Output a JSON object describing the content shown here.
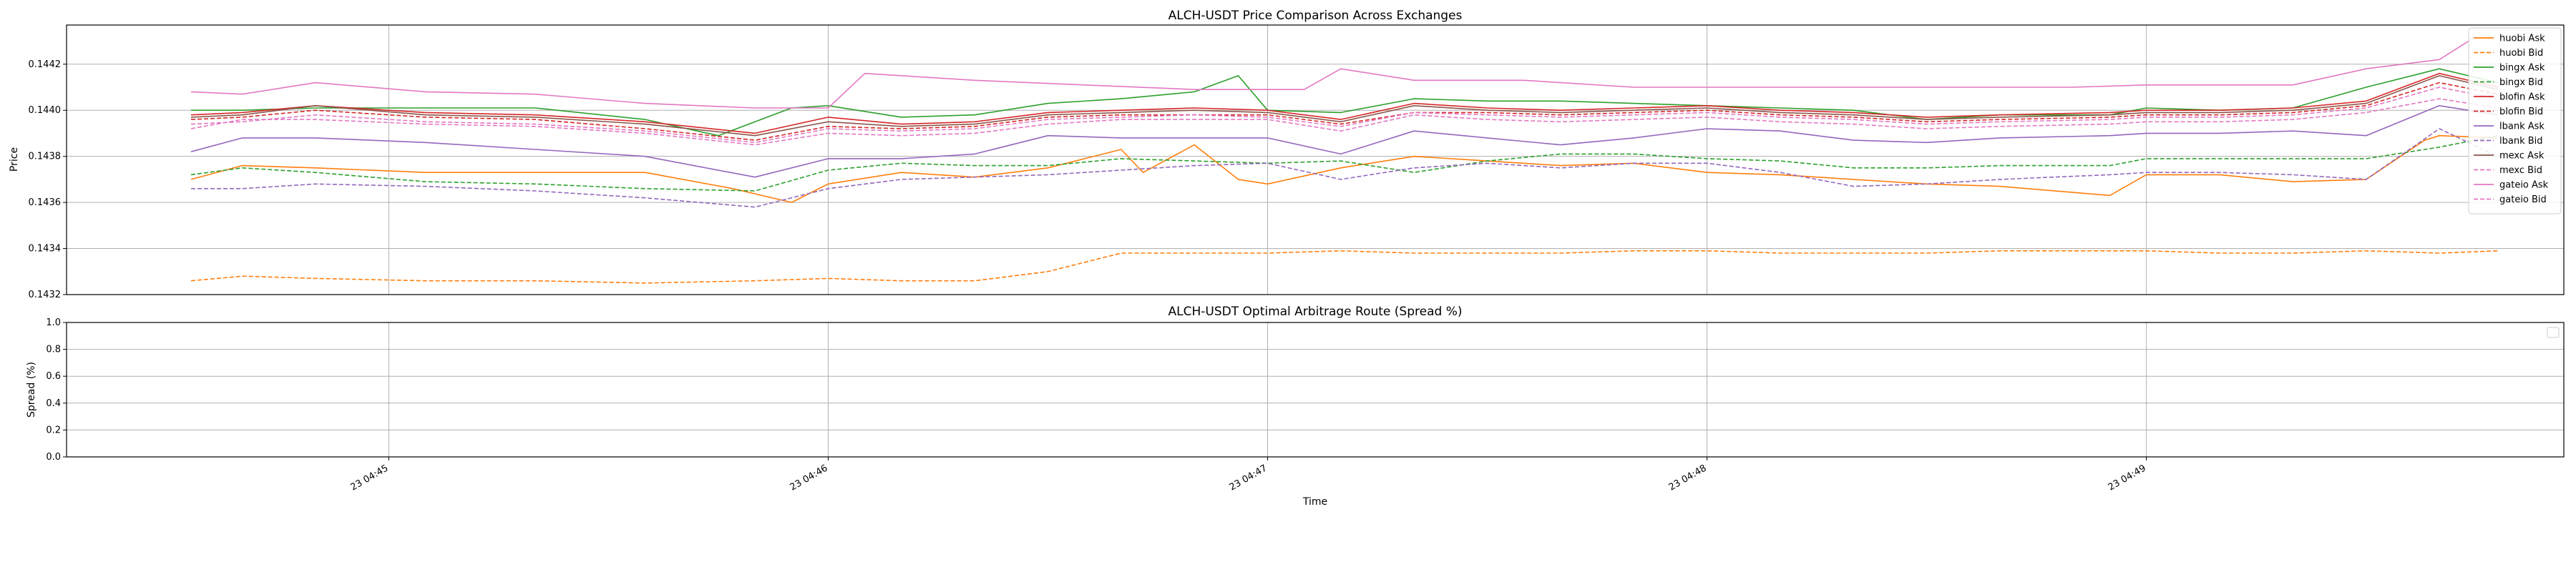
{
  "chart_data": [
    {
      "type": "line",
      "title": "ALCH-USDT Price Comparison Across Exchanges",
      "xlabel": "",
      "ylabel": "Price",
      "ylim": [
        0.1432,
        0.14437
      ],
      "yticks": [
        "0.1432",
        "0.1434",
        "0.1436",
        "0.1438",
        "0.1440",
        "0.1442"
      ],
      "xlim": [
        "04:44:16",
        "04:49:57"
      ],
      "x_unit": "HH:MM:SS",
      "grid": true,
      "legend": "upper-right",
      "series": [
        {
          "name": "huobi Ask",
          "color": "#ff7f0e",
          "style": "solid",
          "x": [
            "04:44:33",
            "04:44:40",
            "04:44:50",
            "04:45:05",
            "04:45:20",
            "04:45:35",
            "04:45:47",
            "04:45:55",
            "04:46:00",
            "04:46:10",
            "04:46:20",
            "04:46:30",
            "04:46:40",
            "04:46:43",
            "04:46:50",
            "04:46:56",
            "04:47:00",
            "04:47:10",
            "04:47:20",
            "04:47:30",
            "04:47:40",
            "04:47:50",
            "04:48:00",
            "04:48:10",
            "04:48:20",
            "04:48:30",
            "04:48:40",
            "04:48:55",
            "04:49:00",
            "04:49:10",
            "04:49:20",
            "04:49:30",
            "04:49:38",
            "04:49:40",
            "04:49:48"
          ],
          "y": [
            0.1437,
            0.14376,
            0.14375,
            0.14373,
            0.14373,
            0.14373,
            0.14366,
            0.1436,
            0.14368,
            0.14373,
            0.14371,
            0.14375,
            0.14383,
            0.14373,
            0.14385,
            0.1437,
            0.14368,
            0.14375,
            0.1438,
            0.14378,
            0.14376,
            0.14377,
            0.14373,
            0.14372,
            0.1437,
            0.14368,
            0.14367,
            0.14363,
            0.14372,
            0.14372,
            0.14369,
            0.1437,
            0.14387,
            0.14389,
            0.14388
          ]
        },
        {
          "name": "huobi Bid",
          "color": "#ff7f0e",
          "style": "dashed",
          "x": [
            "04:44:33",
            "04:44:40",
            "04:44:50",
            "04:45:05",
            "04:45:20",
            "04:45:35",
            "04:45:50",
            "04:46:00",
            "04:46:10",
            "04:46:20",
            "04:46:30",
            "04:46:40",
            "04:46:50",
            "04:47:00",
            "04:47:10",
            "04:47:20",
            "04:47:30",
            "04:47:40",
            "04:47:50",
            "04:48:00",
            "04:48:10",
            "04:48:20",
            "04:48:30",
            "04:48:40",
            "04:48:55",
            "04:49:00",
            "04:49:10",
            "04:49:20",
            "04:49:30",
            "04:49:40",
            "04:49:48"
          ],
          "y": [
            0.14326,
            0.14328,
            0.14327,
            0.14326,
            0.14326,
            0.14325,
            0.14326,
            0.14327,
            0.14326,
            0.14326,
            0.1433,
            0.14338,
            0.14338,
            0.14338,
            0.14339,
            0.14338,
            0.14338,
            0.14338,
            0.14339,
            0.14339,
            0.14338,
            0.14338,
            0.14338,
            0.14339,
            0.14339,
            0.14339,
            0.14338,
            0.14338,
            0.14339,
            0.14338,
            0.14339
          ]
        },
        {
          "name": "bingx Ask",
          "color": "#2ca02c",
          "style": "solid",
          "x": [
            "04:44:33",
            "04:44:40",
            "04:44:50",
            "04:45:05",
            "04:45:20",
            "04:45:35",
            "04:45:45",
            "04:45:55",
            "04:46:00",
            "04:46:10",
            "04:46:20",
            "04:46:30",
            "04:46:40",
            "04:46:50",
            "04:46:56",
            "04:47:00",
            "04:47:10",
            "04:47:20",
            "04:47:30",
            "04:47:40",
            "04:47:50",
            "04:48:00",
            "04:48:10",
            "04:48:20",
            "04:48:30",
            "04:48:40",
            "04:48:55",
            "04:49:00",
            "04:49:10",
            "04:49:20",
            "04:49:30",
            "04:49:40",
            "04:49:48"
          ],
          "y": [
            0.144,
            0.144,
            0.14401,
            0.14401,
            0.14401,
            0.14396,
            0.14389,
            0.14401,
            0.14402,
            0.14397,
            0.14398,
            0.14403,
            0.14405,
            0.14408,
            0.14415,
            0.144,
            0.14399,
            0.14405,
            0.14404,
            0.14404,
            0.14403,
            0.14402,
            0.14401,
            0.144,
            0.14396,
            0.14398,
            0.14398,
            0.14401,
            0.144,
            0.14401,
            0.1441,
            0.14418,
            0.14412
          ]
        },
        {
          "name": "bingx Bid",
          "color": "#2ca02c",
          "style": "dashed",
          "x": [
            "04:44:33",
            "04:44:40",
            "04:44:50",
            "04:45:05",
            "04:45:20",
            "04:45:35",
            "04:45:50",
            "04:46:00",
            "04:46:10",
            "04:46:20",
            "04:46:30",
            "04:46:40",
            "04:46:50",
            "04:47:00",
            "04:47:10",
            "04:47:20",
            "04:47:30",
            "04:47:40",
            "04:47:50",
            "04:48:00",
            "04:48:10",
            "04:48:20",
            "04:48:30",
            "04:48:40",
            "04:48:55",
            "04:49:00",
            "04:49:10",
            "04:49:20",
            "04:49:30",
            "04:49:40",
            "04:49:48"
          ],
          "y": [
            0.14372,
            0.14375,
            0.14373,
            0.14369,
            0.14368,
            0.14366,
            0.14365,
            0.14374,
            0.14377,
            0.14376,
            0.14376,
            0.14379,
            0.14378,
            0.14377,
            0.14378,
            0.14373,
            0.14378,
            0.14381,
            0.14381,
            0.14379,
            0.14378,
            0.14375,
            0.14375,
            0.14376,
            0.14376,
            0.14379,
            0.14379,
            0.14379,
            0.14379,
            0.14384,
            0.14389
          ]
        },
        {
          "name": "blofin Ask",
          "color": "#d62728",
          "style": "solid",
          "x": [
            "04:44:33",
            "04:44:40",
            "04:44:50",
            "04:45:05",
            "04:45:20",
            "04:45:35",
            "04:45:50",
            "04:46:00",
            "04:46:10",
            "04:46:20",
            "04:46:30",
            "04:46:40",
            "04:46:50",
            "04:47:00",
            "04:47:10",
            "04:47:20",
            "04:47:30",
            "04:47:40",
            "04:47:50",
            "04:48:00",
            "04:48:10",
            "04:48:20",
            "04:48:30",
            "04:48:40",
            "04:48:55",
            "04:49:00",
            "04:49:10",
            "04:49:20",
            "04:49:30",
            "04:49:40",
            "04:49:48"
          ],
          "y": [
            0.14398,
            0.14399,
            0.14402,
            0.14399,
            0.14398,
            0.14395,
            0.1439,
            0.14397,
            0.14394,
            0.14395,
            0.14399,
            0.144,
            0.14401,
            0.144,
            0.14396,
            0.14403,
            0.14401,
            0.144,
            0.14401,
            0.14402,
            0.144,
            0.14399,
            0.14397,
            0.14398,
            0.14399,
            0.144,
            0.144,
            0.14401,
            0.14404,
            0.14416,
            0.1441
          ]
        },
        {
          "name": "blofin Bid",
          "color": "#d62728",
          "style": "dashed",
          "x": [
            "04:44:33",
            "04:44:40",
            "04:44:50",
            "04:45:05",
            "04:45:20",
            "04:45:35",
            "04:45:50",
            "04:46:00",
            "04:46:10",
            "04:46:20",
            "04:46:30",
            "04:46:40",
            "04:46:50",
            "04:47:00",
            "04:47:10",
            "04:47:20",
            "04:47:30",
            "04:47:40",
            "04:47:50",
            "04:48:00",
            "04:48:10",
            "04:48:20",
            "04:48:30",
            "04:48:40",
            "04:48:55",
            "04:49:00",
            "04:49:10",
            "04:49:20",
            "04:49:30",
            "04:49:40",
            "04:49:48"
          ],
          "y": [
            0.14396,
            0.14397,
            0.144,
            0.14397,
            0.14396,
            0.14392,
            0.14387,
            0.14393,
            0.14392,
            0.14393,
            0.14397,
            0.14398,
            0.14398,
            0.14398,
            0.14394,
            0.14399,
            0.14399,
            0.14398,
            0.14399,
            0.144,
            0.14398,
            0.14397,
            0.14395,
            0.14396,
            0.14397,
            0.14398,
            0.14398,
            0.14399,
            0.14402,
            0.14412,
            0.14407
          ]
        },
        {
          "name": "lbank Ask",
          "color": "#9467bd",
          "style": "solid",
          "x": [
            "04:44:33",
            "04:44:40",
            "04:44:50",
            "04:45:05",
            "04:45:20",
            "04:45:35",
            "04:45:50",
            "04:46:00",
            "04:46:10",
            "04:46:20",
            "04:46:30",
            "04:46:40",
            "04:46:50",
            "04:47:00",
            "04:47:10",
            "04:47:20",
            "04:47:30",
            "04:47:40",
            "04:47:50",
            "04:48:00",
            "04:48:10",
            "04:48:20",
            "04:48:30",
            "04:48:40",
            "04:48:55",
            "04:49:00",
            "04:49:10",
            "04:49:20",
            "04:49:30",
            "04:49:40",
            "04:49:48"
          ],
          "y": [
            0.14382,
            0.14388,
            0.14388,
            0.14386,
            0.14383,
            0.1438,
            0.14371,
            0.14379,
            0.14379,
            0.14381,
            0.14389,
            0.14388,
            0.14388,
            0.14388,
            0.14381,
            0.14391,
            0.14388,
            0.14385,
            0.14388,
            0.14392,
            0.14391,
            0.14387,
            0.14386,
            0.14388,
            0.14389,
            0.1439,
            0.1439,
            0.14391,
            0.14389,
            0.14402,
            0.14398
          ]
        },
        {
          "name": "lbank Bid",
          "color": "#9467bd",
          "style": "dashed",
          "x": [
            "04:44:33",
            "04:44:40",
            "04:44:50",
            "04:45:05",
            "04:45:20",
            "04:45:35",
            "04:45:50",
            "04:46:00",
            "04:46:10",
            "04:46:20",
            "04:46:30",
            "04:46:40",
            "04:46:50",
            "04:47:00",
            "04:47:10",
            "04:47:20",
            "04:47:30",
            "04:47:40",
            "04:47:50",
            "04:48:00",
            "04:48:10",
            "04:48:20",
            "04:48:30",
            "04:48:40",
            "04:48:55",
            "04:49:00",
            "04:49:10",
            "04:49:20",
            "04:49:30",
            "04:49:40",
            "04:49:48"
          ],
          "y": [
            0.14366,
            0.14366,
            0.14368,
            0.14367,
            0.14365,
            0.14362,
            0.14358,
            0.14366,
            0.1437,
            0.14371,
            0.14372,
            0.14374,
            0.14376,
            0.14377,
            0.1437,
            0.14375,
            0.14377,
            0.14375,
            0.14377,
            0.14377,
            0.14373,
            0.14367,
            0.14368,
            0.1437,
            0.14372,
            0.14373,
            0.14373,
            0.14372,
            0.1437,
            0.14392,
            0.1438
          ]
        },
        {
          "name": "mexc Ask",
          "color": "#8c564b",
          "style": "solid",
          "x": [
            "04:44:33",
            "04:44:40",
            "04:44:50",
            "04:45:05",
            "04:45:20",
            "04:45:35",
            "04:45:50",
            "04:46:00",
            "04:46:10",
            "04:46:20",
            "04:46:30",
            "04:46:40",
            "04:46:50",
            "04:47:00",
            "04:47:10",
            "04:47:20",
            "04:47:30",
            "04:47:40",
            "04:47:50",
            "04:48:00",
            "04:48:10",
            "04:48:20",
            "04:48:30",
            "04:48:40",
            "04:48:55",
            "04:49:00",
            "04:49:10",
            "04:49:20",
            "04:49:30",
            "04:49:40",
            "04:49:48"
          ],
          "y": [
            0.14397,
            0.14398,
            0.14402,
            0.14398,
            0.14397,
            0.14394,
            0.14389,
            0.14395,
            0.14393,
            0.14394,
            0.14398,
            0.14399,
            0.144,
            0.14399,
            0.14395,
            0.14402,
            0.144,
            0.14399,
            0.144,
            0.14401,
            0.14399,
            0.14398,
            0.14396,
            0.14397,
            0.14398,
            0.14399,
            0.14399,
            0.144,
            0.14403,
            0.14415,
            0.14409
          ]
        },
        {
          "name": "mexc Bid",
          "color": "#e377c2",
          "style": "dashed",
          "x": [
            "04:44:33",
            "04:44:40",
            "04:44:50",
            "04:45:05",
            "04:45:20",
            "04:45:35",
            "04:45:50",
            "04:46:00",
            "04:46:10",
            "04:46:20",
            "04:46:30",
            "04:46:40",
            "04:46:50",
            "04:47:00",
            "04:47:10",
            "04:47:20",
            "04:47:30",
            "04:47:40",
            "04:47:50",
            "04:48:00",
            "04:48:10",
            "04:48:20",
            "04:48:30",
            "04:48:40",
            "04:48:55",
            "04:49:00",
            "04:49:10",
            "04:49:20",
            "04:49:30",
            "04:49:40",
            "04:49:48"
          ],
          "y": [
            0.14394,
            0.14395,
            0.14398,
            0.14395,
            0.14394,
            0.14391,
            0.14386,
            0.14392,
            0.14391,
            0.14392,
            0.14396,
            0.14397,
            0.14398,
            0.14397,
            0.14393,
            0.14399,
            0.14398,
            0.14397,
            0.14398,
            0.14399,
            0.14397,
            0.14396,
            0.14394,
            0.14395,
            0.14396,
            0.14397,
            0.14397,
            0.14398,
            0.14401,
            0.1441,
            0.14405
          ]
        },
        {
          "name": "gateio Ask",
          "color": "#e377c2",
          "style": "solid",
          "x": [
            "04:44:33",
            "04:44:40",
            "04:44:50",
            "04:45:05",
            "04:45:20",
            "04:45:35",
            "04:45:50",
            "04:46:00",
            "04:46:05",
            "04:46:20",
            "04:46:35",
            "04:46:50",
            "04:47:05",
            "04:47:10",
            "04:47:20",
            "04:47:35",
            "04:47:50",
            "04:48:05",
            "04:48:20",
            "04:48:35",
            "04:48:50",
            "04:49:00",
            "04:49:10",
            "04:49:20",
            "04:49:30",
            "04:49:40",
            "04:49:45"
          ],
          "y": [
            0.14408,
            0.14407,
            0.14412,
            0.14408,
            0.14407,
            0.14403,
            0.14401,
            0.14401,
            0.14416,
            0.14413,
            0.14411,
            0.14409,
            0.14409,
            0.14418,
            0.14413,
            0.14413,
            0.1441,
            0.1441,
            0.1441,
            0.1441,
            0.1441,
            0.14411,
            0.14411,
            0.14411,
            0.14418,
            0.14422,
            0.14432
          ]
        },
        {
          "name": "gateio Bid",
          "color": "#e377c2",
          "style": "dashed",
          "x": [
            "04:44:33",
            "04:44:40",
            "04:44:50",
            "04:45:05",
            "04:45:20",
            "04:45:35",
            "04:45:50",
            "04:46:00",
            "04:46:10",
            "04:46:20",
            "04:46:30",
            "04:46:40",
            "04:46:50",
            "04:47:00",
            "04:47:10",
            "04:47:20",
            "04:47:30",
            "04:47:40",
            "04:47:50",
            "04:48:00",
            "04:48:10",
            "04:48:20",
            "04:48:30",
            "04:48:40",
            "04:48:55",
            "04:49:00",
            "04:49:10",
            "04:49:20",
            "04:49:30",
            "04:49:40",
            "04:49:48"
          ],
          "y": [
            0.14392,
            0.14396,
            0.14396,
            0.14394,
            0.14393,
            0.1439,
            0.14385,
            0.1439,
            0.14389,
            0.1439,
            0.14394,
            0.14396,
            0.14396,
            0.14396,
            0.14391,
            0.14398,
            0.14396,
            0.14395,
            0.14396,
            0.14397,
            0.14395,
            0.14394,
            0.14392,
            0.14393,
            0.14394,
            0.14395,
            0.14395,
            0.14396,
            0.14399,
            0.14405,
            0.14401
          ]
        }
      ]
    },
    {
      "type": "line",
      "title": "ALCH-USDT Optimal Arbitrage Route (Spread %)",
      "xlabel": "Time",
      "ylabel": "Spread (%)",
      "ylim": [
        0.0,
        1.0
      ],
      "yticks": [
        "0.0",
        "0.2",
        "0.4",
        "0.6",
        "0.8",
        "1.0"
      ],
      "xticks": [
        "23 04:45",
        "23 04:46",
        "23 04:47",
        "23 04:48",
        "23 04:49"
      ],
      "xlim": [
        "04:44:16",
        "04:49:57"
      ],
      "grid": true,
      "legend": "upper-right (empty)",
      "series": []
    }
  ]
}
